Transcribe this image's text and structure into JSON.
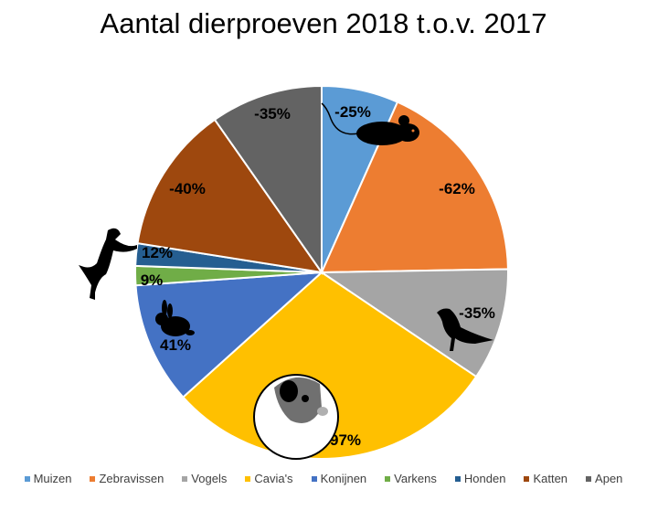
{
  "chart_data": {
    "type": "pie",
    "title": "Aantal dierproeven 2018 t.o.v. 2017",
    "categories": [
      "Muizen",
      "Zebravissen",
      "Vogels",
      "Cavia's",
      "Konijnen",
      "Varkens",
      "Honden",
      "Katten",
      "Apen"
    ],
    "labels": [
      "-25%",
      "-62%",
      "-35%",
      "97%",
      "41%",
      "9%",
      "12%",
      "-40%",
      "-35%"
    ],
    "values": [
      -25,
      -62,
      -35,
      97,
      41,
      9,
      12,
      -40,
      -35
    ],
    "slice_angles_deg": [
      [
        0,
        24
      ],
      [
        24,
        89
      ],
      [
        89,
        124
      ],
      [
        124,
        228
      ],
      [
        228,
        266
      ],
      [
        266,
        272
      ],
      [
        272,
        279
      ],
      [
        279,
        325
      ],
      [
        325,
        360
      ]
    ],
    "colors": [
      "#5B9BD5",
      "#ED7D31",
      "#A5A5A5",
      "#FFC000",
      "#4472C4",
      "#70AD47",
      "#255E91",
      "#9E480E",
      "#636363"
    ],
    "legend_position": "bottom"
  },
  "title": "Aantal dierproeven 2018 t.o.v. 2017",
  "legend": [
    {
      "label": "Muizen",
      "color": "#5B9BD5"
    },
    {
      "label": "Zebravissen",
      "color": "#ED7D31"
    },
    {
      "label": "Vogels",
      "color": "#A5A5A5"
    },
    {
      "label": "Cavia's",
      "color": "#FFC000"
    },
    {
      "label": "Konijnen",
      "color": "#4472C4"
    },
    {
      "label": "Varkens",
      "color": "#70AD47"
    },
    {
      "label": "Honden",
      "color": "#255E91"
    },
    {
      "label": "Katten",
      "color": "#9E480E"
    },
    {
      "label": "Apen",
      "color": "#636363"
    }
  ]
}
